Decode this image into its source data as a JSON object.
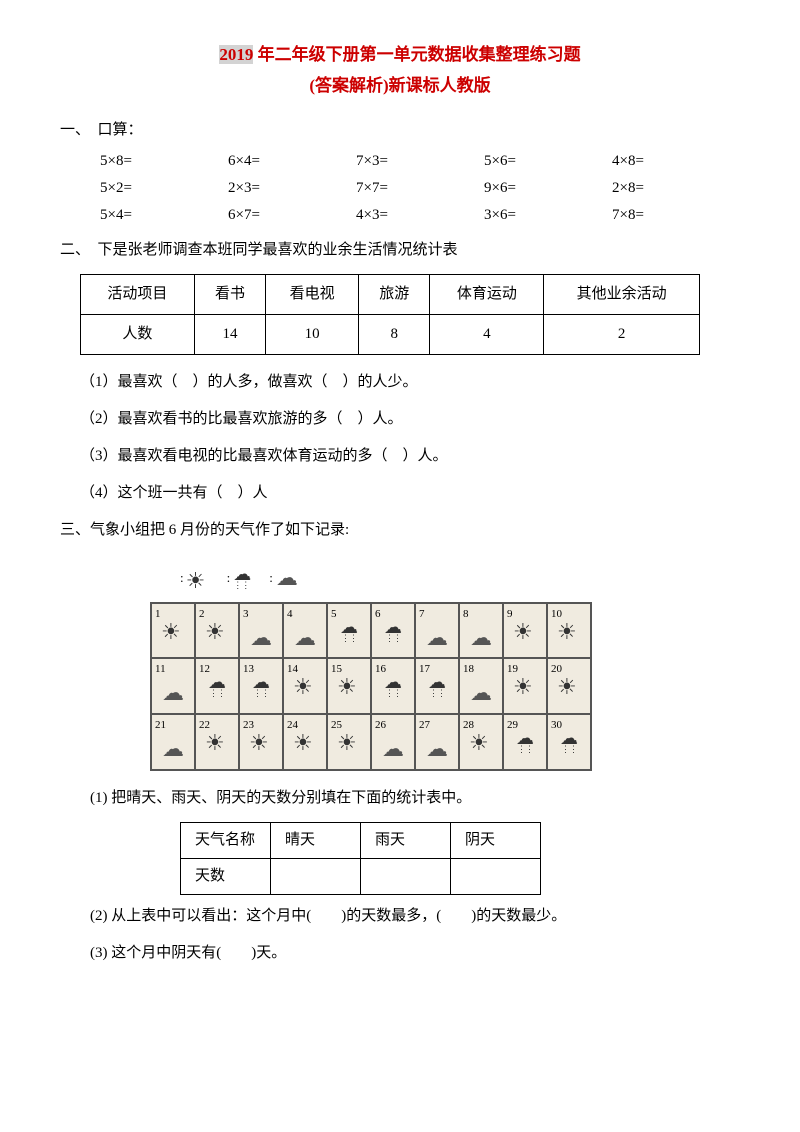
{
  "title": {
    "highlight": "2019",
    "line1_rest": " 年二年级下册第一单元数据收集整理练习题",
    "line2": "(答案解析)新课标人教版"
  },
  "section1": {
    "heading": "一、　口算：",
    "rows": [
      [
        "5×8=",
        "6×4=",
        "7×3=",
        "5×6=",
        "4×8="
      ],
      [
        "5×2=",
        "2×3=",
        "7×7=",
        "9×6=",
        "2×8="
      ],
      [
        "5×4=",
        "6×7=",
        "4×3=",
        "3×6=",
        "7×8="
      ]
    ]
  },
  "section2": {
    "heading": "二、　下是张老师调查本班同学最喜欢的业余生活情况统计表",
    "table": {
      "headers": [
        "活动项目",
        "看书",
        "看电视",
        "旅游",
        "体育运动",
        "其他业余活动"
      ],
      "row_label": "人数",
      "values": [
        "14",
        "10",
        "8",
        "4",
        "2"
      ]
    },
    "questions": [
      "（1）最喜欢（　）的人多，做喜欢（　）的人少。",
      "（2）最喜欢看书的比最喜欢旅游的多（　）人。",
      "（3）最喜欢看电视的比最喜欢体育运动的多（　）人。",
      "（4）这个班一共有（　）人"
    ]
  },
  "section3": {
    "heading": "三、气象小组把 6 月份的天气作了如下记录:",
    "legend": [
      {
        "sym": "sun",
        "lbl": ":"
      },
      {
        "sym": "rain",
        "lbl": ":"
      },
      {
        "sym": "cloud",
        "lbl": ":"
      }
    ],
    "days": [
      {
        "n": "1",
        "w": "sun"
      },
      {
        "n": "2",
        "w": "sun"
      },
      {
        "n": "3",
        "w": "cloud"
      },
      {
        "n": "4",
        "w": "cloud"
      },
      {
        "n": "5",
        "w": "rain"
      },
      {
        "n": "6",
        "w": "rain"
      },
      {
        "n": "7",
        "w": "cloud"
      },
      {
        "n": "8",
        "w": "cloud"
      },
      {
        "n": "9",
        "w": "sun"
      },
      {
        "n": "10",
        "w": "sun"
      },
      {
        "n": "11",
        "w": "cloud"
      },
      {
        "n": "12",
        "w": "rain"
      },
      {
        "n": "13",
        "w": "rain"
      },
      {
        "n": "14",
        "w": "sun"
      },
      {
        "n": "15",
        "w": "sun"
      },
      {
        "n": "16",
        "w": "rain"
      },
      {
        "n": "17",
        "w": "rain"
      },
      {
        "n": "18",
        "w": "cloud"
      },
      {
        "n": "19",
        "w": "sun"
      },
      {
        "n": "20",
        "w": "sun"
      },
      {
        "n": "21",
        "w": "cloud"
      },
      {
        "n": "22",
        "w": "sun"
      },
      {
        "n": "23",
        "w": "sun"
      },
      {
        "n": "24",
        "w": "sun"
      },
      {
        "n": "25",
        "w": "sun"
      },
      {
        "n": "26",
        "w": "cloud"
      },
      {
        "n": "27",
        "w": "cloud"
      },
      {
        "n": "28",
        "w": "sun"
      },
      {
        "n": "29",
        "w": "rain"
      },
      {
        "n": "30",
        "w": "rain"
      }
    ],
    "sub1": "(1) 把晴天、雨天、阴天的天数分别填在下面的统计表中。",
    "stats_headers": [
      "天气名称",
      "晴天",
      "雨天",
      "阴天"
    ],
    "stats_row_label": "天数",
    "sub2": "(2) 从上表中可以看出：这个月中(　　)的天数最多，(　　)的天数最少。",
    "sub3": "(3) 这个月中阴天有(　　)天。"
  }
}
